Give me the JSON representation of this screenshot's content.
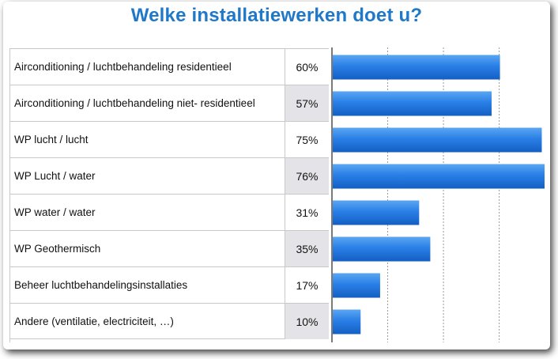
{
  "title": "Welke installatiewerken doet u?",
  "chart_data": {
    "type": "bar",
    "orientation": "horizontal",
    "title": "Welke installatiewerken doet u?",
    "categories": [
      "Airconditioning / luchtbehandeling residentieel",
      "Airconditioning / luchtbehandeling niet- residentieel",
      "WP lucht / lucht",
      "WP Lucht / water",
      "WP water / water",
      "WP Geothermisch",
      "Beheer luchtbehandelingsinstallaties",
      "Andere (ventilatie, electriciteit, …)"
    ],
    "values": [
      60,
      57,
      75,
      76,
      31,
      35,
      17,
      10
    ],
    "value_labels": [
      "60%",
      "57%",
      "75%",
      "76%",
      "31%",
      "35%",
      "17%",
      "10%"
    ],
    "xlim": [
      0,
      76
    ],
    "grid": true,
    "gridline_values": [
      20,
      40,
      60
    ],
    "bar_color": "#1f6fd6",
    "xlabel": "",
    "ylabel": ""
  }
}
